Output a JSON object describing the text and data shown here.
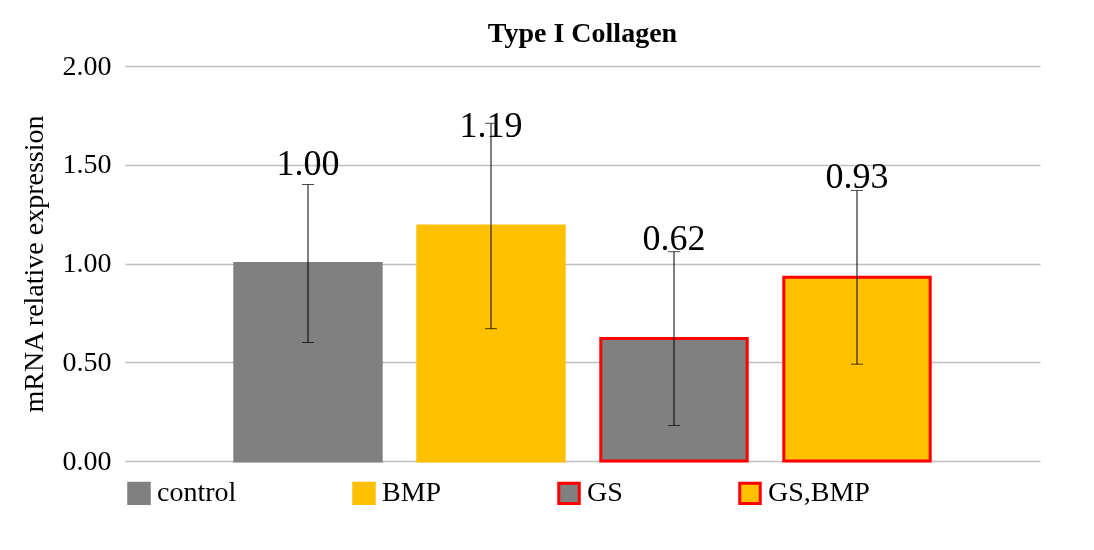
{
  "chart_data": {
    "type": "bar",
    "title": "Type I Collagen",
    "ylabel": "mRNA relative expression",
    "categories": [
      null
    ],
    "series": [
      {
        "name": "control",
        "color": "#808080",
        "values": [
          1.0
        ],
        "errors": [
          0.4
        ],
        "value_labels": [
          "1.00"
        ]
      },
      {
        "name": "BMP",
        "color": "#ffc000",
        "values": [
          1.19
        ],
        "errors": [
          0.52
        ],
        "value_labels": [
          "1.19"
        ]
      },
      {
        "name": "GS",
        "color": "#808080",
        "values": [
          0.62
        ],
        "errors": [
          0.44
        ],
        "value_labels": [
          "0.62"
        ]
      },
      {
        "name": "GS,BMP",
        "color": "#ffc000",
        "values": [
          0.93
        ],
        "errors": [
          0.44
        ],
        "value_labels": [
          "0.93"
        ]
      }
    ],
    "ylim": [
      0,
      2
    ],
    "yticks": [
      {
        "value": 0,
        "label": "0.00"
      },
      {
        "value": 0.5,
        "label": "0.50"
      },
      {
        "value": 1,
        "label": "1.00"
      },
      {
        "value": 1.5,
        "label": "1.50"
      },
      {
        "value": 2,
        "label": "2.00"
      }
    ],
    "grid": "y",
    "legend": "bottom"
  }
}
